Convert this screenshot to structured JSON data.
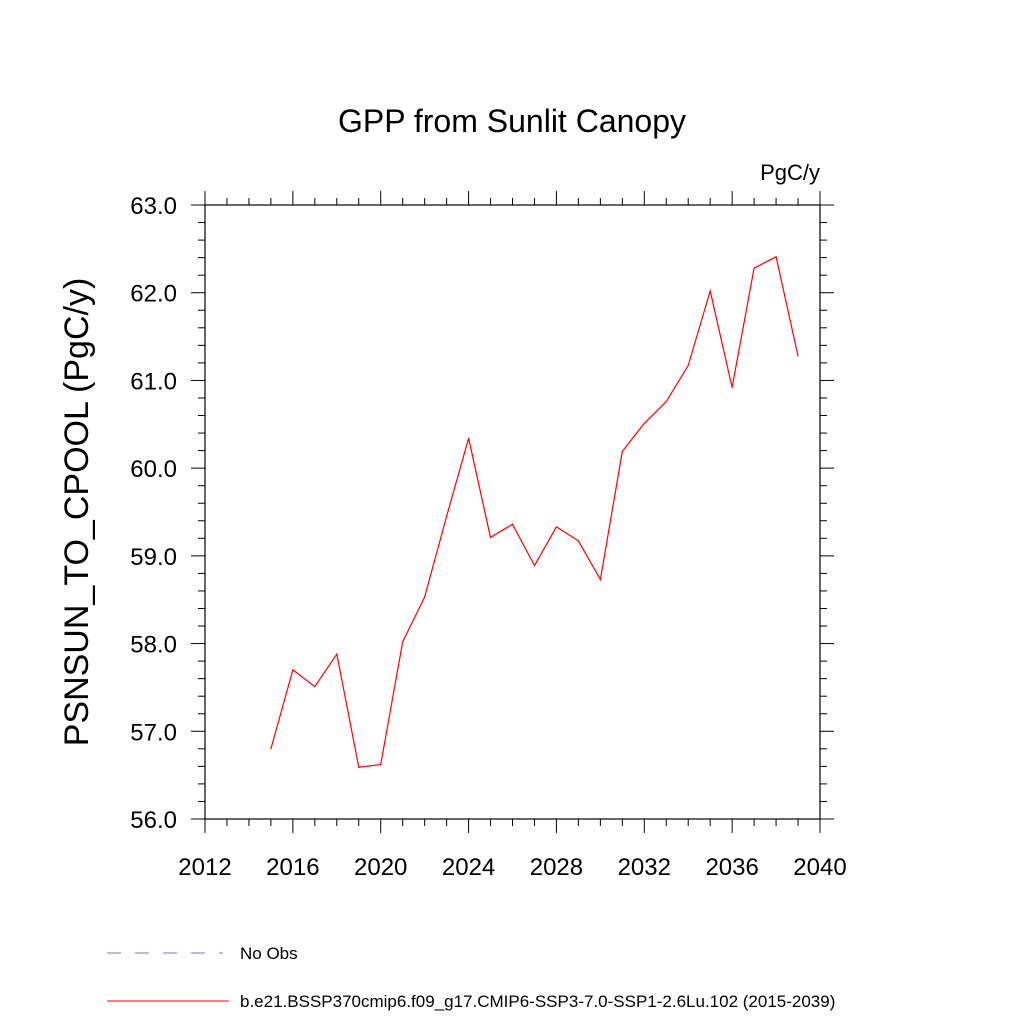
{
  "chart_data": {
    "type": "line",
    "title": "GPP from Sunlit Canopy",
    "units_label": "PgC/y",
    "xlabel": "",
    "ylabel": "PSNSUN_TO_CPOOL  (PgC/y)",
    "xlim": [
      2012,
      2040
    ],
    "ylim": [
      56.0,
      63.0
    ],
    "x_ticks": [
      2012,
      2016,
      2020,
      2024,
      2028,
      2032,
      2036,
      2040
    ],
    "x_tick_labels": [
      "2012",
      "2016",
      "2020",
      "2024",
      "2028",
      "2032",
      "2036",
      "2040"
    ],
    "y_ticks": [
      56,
      57,
      58,
      59,
      60,
      61,
      62,
      63
    ],
    "y_tick_labels": [
      "56.0",
      "57.0",
      "58.0",
      "59.0",
      "60.0",
      "61.0",
      "62.0",
      "63.0"
    ],
    "grid": false,
    "series": [
      {
        "name": "b.e21.BSSP370cmip6.f09_g17.CMIP6-SSP3-7.0-SSP1-2.6Lu.102 (2015-2039)",
        "color": "#ff0000",
        "x": [
          2015,
          2016,
          2017,
          2018,
          2019,
          2020,
          2021,
          2022,
          2023,
          2024,
          2025,
          2026,
          2027,
          2028,
          2029,
          2030,
          2031,
          2032,
          2033,
          2034,
          2035,
          2036,
          2037,
          2038,
          2039
        ],
        "values": [
          56.8,
          57.7,
          57.51,
          57.88,
          56.59,
          56.62,
          58.02,
          58.53,
          59.45,
          60.34,
          59.21,
          59.36,
          58.89,
          59.33,
          59.17,
          58.73,
          60.19,
          60.51,
          60.76,
          61.17,
          62.02,
          60.92,
          62.28,
          62.41,
          61.28
        ]
      }
    ],
    "legend": [
      {
        "label": "No Obs",
        "style": "dashed",
        "color": "#7777cc"
      },
      {
        "label": "b.e21.BSSP370cmip6.f09_g17.CMIP6-SSP3-7.0-SSP1-2.6Lu.102 (2015-2039)",
        "style": "solid",
        "color": "#ff0000"
      }
    ],
    "legend_position": "bottom-left"
  }
}
